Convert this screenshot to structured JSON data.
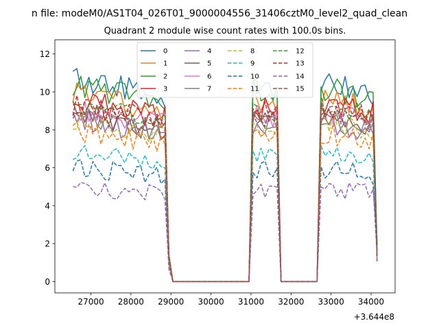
{
  "suptitle": "n file: modeM0/AS1T04_026T01_9000004556_31406cztM0_level2_quad_clean",
  "chart_data": {
    "type": "line",
    "title": "Quadrant 2 module wise count rates with 100.0s bins.",
    "xlabel": "",
    "ylabel": "",
    "x_offset_label": "+3.644e8",
    "xlim": [
      26100,
      34600
    ],
    "ylim": [
      -0.6,
      12.75
    ],
    "xticks": [
      27000,
      28000,
      29000,
      30000,
      31000,
      32000,
      33000,
      34000
    ],
    "yticks": [
      0,
      2,
      4,
      6,
      8,
      10,
      12
    ],
    "grid": false,
    "legend": {
      "placement": "top-center",
      "columns": 4
    },
    "segments": [
      {
        "x0": 26550,
        "count": 25,
        "mid": 27700
      },
      {
        "x0": 31050,
        "count": 7,
        "mid": 31350
      },
      {
        "x0": 32750,
        "count": 15,
        "mid": 33450
      }
    ],
    "series": [
      {
        "name": "0",
        "color": "#1f77b4",
        "dash": "solid",
        "base": 10.2,
        "variability": 0.32
      },
      {
        "name": "1",
        "color": "#ff7f0e",
        "dash": "solid",
        "base": 9.4,
        "variability": 0.3
      },
      {
        "name": "2",
        "color": "#2ca02c",
        "dash": "solid",
        "base": 9.9,
        "variability": 0.3
      },
      {
        "name": "3",
        "color": "#d62728",
        "dash": "solid",
        "base": 9.1,
        "variability": 0.3
      },
      {
        "name": "4",
        "color": "#9467bd",
        "dash": "solid",
        "base": 8.2,
        "variability": 0.28
      },
      {
        "name": "5",
        "color": "#8c564b",
        "dash": "solid",
        "base": 8.5,
        "variability": 0.28
      },
      {
        "name": "6",
        "color": "#e377c2",
        "dash": "solid",
        "base": 8.7,
        "variability": 0.28
      },
      {
        "name": "7",
        "color": "#7f7f7f",
        "dash": "solid",
        "base": 8.3,
        "variability": 0.28
      },
      {
        "name": "8",
        "color": "#bcbd22",
        "dash": "dashed",
        "base": 8.2,
        "variability": 0.28
      },
      {
        "name": "9",
        "color": "#17becf",
        "dash": "dashed",
        "base": 6.5,
        "variability": 0.25
      },
      {
        "name": "10",
        "color": "#1f77b4",
        "dash": "dashed",
        "base": 5.8,
        "variability": 0.25
      },
      {
        "name": "11",
        "color": "#ff7f0e",
        "dash": "dashed",
        "base": 7.6,
        "variability": 0.28
      },
      {
        "name": "12",
        "color": "#2ca02c",
        "dash": "dashed",
        "base": 9.0,
        "variability": 0.28
      },
      {
        "name": "13",
        "color": "#d62728",
        "dash": "dashed",
        "base": 8.9,
        "variability": 0.28
      },
      {
        "name": "14",
        "color": "#9467bd",
        "dash": "dashed",
        "base": 4.8,
        "variability": 0.22
      },
      {
        "name": "15",
        "color": "#8c564b",
        "dash": "dashed",
        "base": 8.6,
        "variability": 0.28
      }
    ]
  }
}
